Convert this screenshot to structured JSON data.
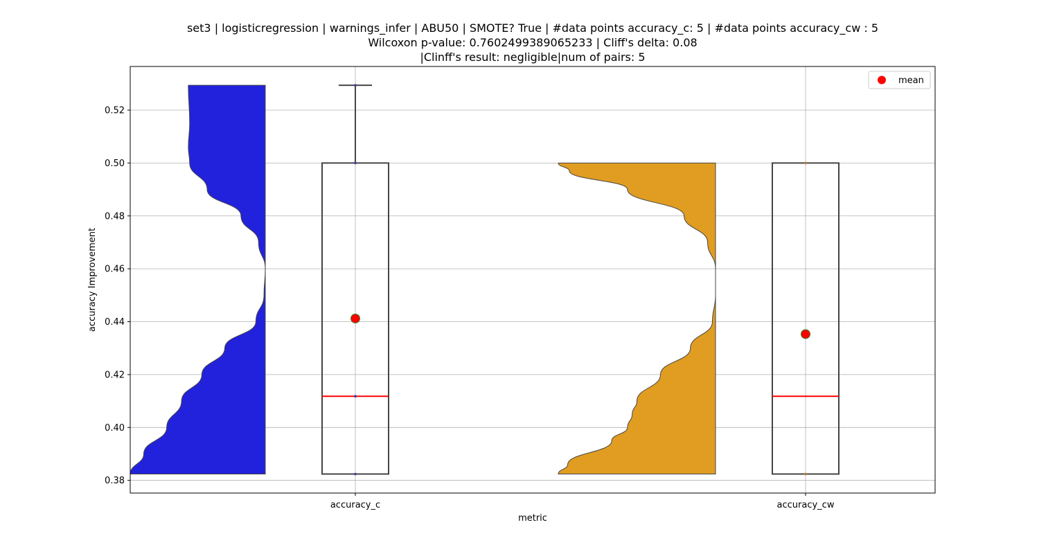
{
  "chart_data": {
    "type": "violin-box",
    "title_lines": [
      "set3 | logisticregression | warnings_infer | ABU50 | SMOTE? True | #data points accuracy_c: 5 | #data points accuracy_cw : 5",
      "Wilcoxon p-value: 0.7602499389065233 | Cliff's delta: 0.08",
      "|Clinff's result: negligible|num of pairs: 5"
    ],
    "xlabel": "metric",
    "ylabel": "accuracy Improvement",
    "ylim": [
      0.3752,
      0.5365
    ],
    "yticks": [
      0.38,
      0.4,
      0.42,
      0.44,
      0.46,
      0.48,
      0.5,
      0.52
    ],
    "ytick_labels": [
      "0.38",
      "0.40",
      "0.42",
      "0.44",
      "0.46",
      "0.48",
      "0.50",
      "0.52"
    ],
    "categories": [
      "accuracy_c",
      "accuracy_cw"
    ],
    "grid": true,
    "legend": {
      "placement": "top-right",
      "label": "mean",
      "color": "#ff0000"
    },
    "median_color": "#ff0000",
    "mean_marker_color": "#ff0000",
    "mean_marker_edge": "#2e8b2e",
    "series": [
      {
        "name": "accuracy_c",
        "violin_color": "#2222dd",
        "min": 0.3824,
        "q1": 0.3824,
        "median": 0.4118,
        "q3": 0.5,
        "max": 0.5294,
        "mean": 0.4412,
        "points": [
          0.3824,
          0.4118,
          0.5,
          0.5294
        ],
        "density": [
          [
            0.3824,
            1.0
          ],
          [
            0.39,
            0.9
          ],
          [
            0.4,
            0.73
          ],
          [
            0.41,
            0.62
          ],
          [
            0.42,
            0.47
          ],
          [
            0.43,
            0.3
          ],
          [
            0.44,
            0.07
          ],
          [
            0.45,
            0.01
          ],
          [
            0.46,
            0.0
          ],
          [
            0.47,
            0.05
          ],
          [
            0.48,
            0.18
          ],
          [
            0.49,
            0.43
          ],
          [
            0.5,
            0.56
          ],
          [
            0.506,
            0.57
          ],
          [
            0.515,
            0.56
          ],
          [
            0.5294,
            0.57
          ]
        ]
      },
      {
        "name": "accuracy_cw",
        "violin_color": "#e09d22",
        "min": 0.3824,
        "q1": 0.3824,
        "median": 0.4118,
        "q3": 0.5,
        "max": 0.5,
        "mean": 0.4353,
        "points": [
          0.3824,
          0.5
        ],
        "density": [
          [
            0.3824,
            1.0
          ],
          [
            0.386,
            0.94
          ],
          [
            0.395,
            0.66
          ],
          [
            0.4,
            0.56
          ],
          [
            0.405,
            0.53
          ],
          [
            0.41,
            0.5
          ],
          [
            0.42,
            0.35
          ],
          [
            0.43,
            0.16
          ],
          [
            0.44,
            0.02
          ],
          [
            0.45,
            0.0
          ],
          [
            0.46,
            0.0
          ],
          [
            0.47,
            0.05
          ],
          [
            0.48,
            0.2
          ],
          [
            0.49,
            0.56
          ],
          [
            0.497,
            0.93
          ],
          [
            0.5,
            1.0
          ]
        ]
      }
    ]
  }
}
